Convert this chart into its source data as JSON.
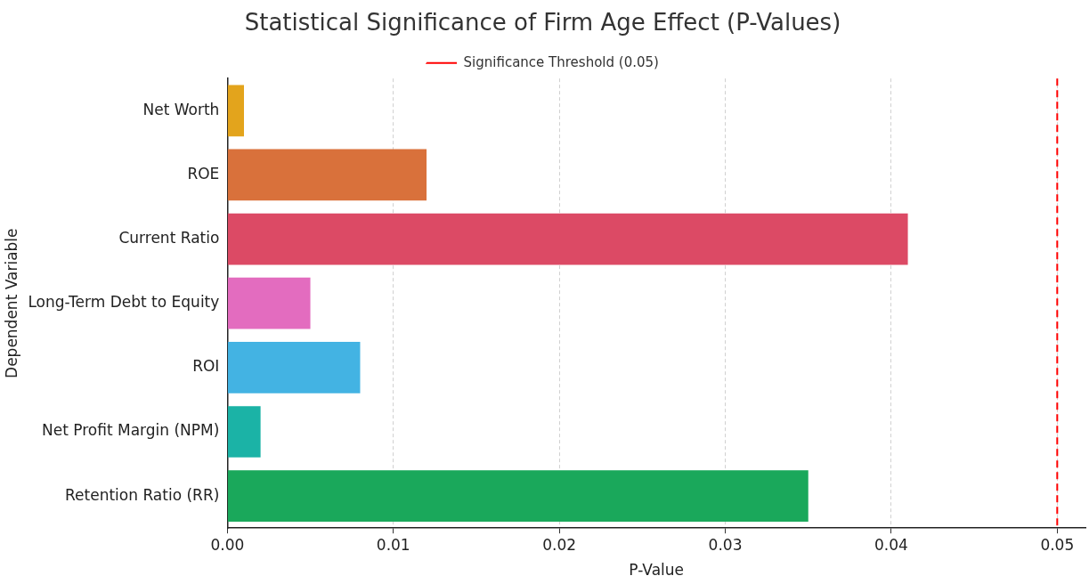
{
  "chart_data": {
    "type": "bar",
    "orientation": "horizontal",
    "title": "Statistical Significance of Firm Age Effect (P-Values)",
    "xlabel": "P-Value",
    "ylabel": "Dependent Variable",
    "categories": [
      "Net Worth",
      "ROE",
      "Current Ratio",
      "Long-Term Debt to Equity",
      "ROI",
      "Net Profit Margin (NPM)",
      "Retention Ratio (RR)"
    ],
    "values": [
      0.001,
      0.012,
      0.041,
      0.005,
      0.008,
      0.002,
      0.035
    ],
    "colors": [
      "#e3a41c",
      "#d9713b",
      "#dc4a65",
      "#e36cbf",
      "#43b3e3",
      "#1bb3a6",
      "#1aa85b"
    ],
    "xlim": [
      0,
      0.0517
    ],
    "xticks": [
      {
        "value": 0,
        "label": "0.00"
      },
      {
        "value": 0.01,
        "label": "0.01"
      },
      {
        "value": 0.02,
        "label": "0.02"
      },
      {
        "value": 0.03,
        "label": "0.03"
      },
      {
        "value": 0.04,
        "label": "0.04"
      },
      {
        "value": 0.05,
        "label": "0.05"
      }
    ],
    "grid": "x",
    "legend": "top",
    "ref_lines": [
      {
        "axis": "x",
        "value": 0.05,
        "label": "Significance Threshold (0.05)",
        "color": "#ff0000",
        "line_style": "dashed"
      }
    ]
  }
}
